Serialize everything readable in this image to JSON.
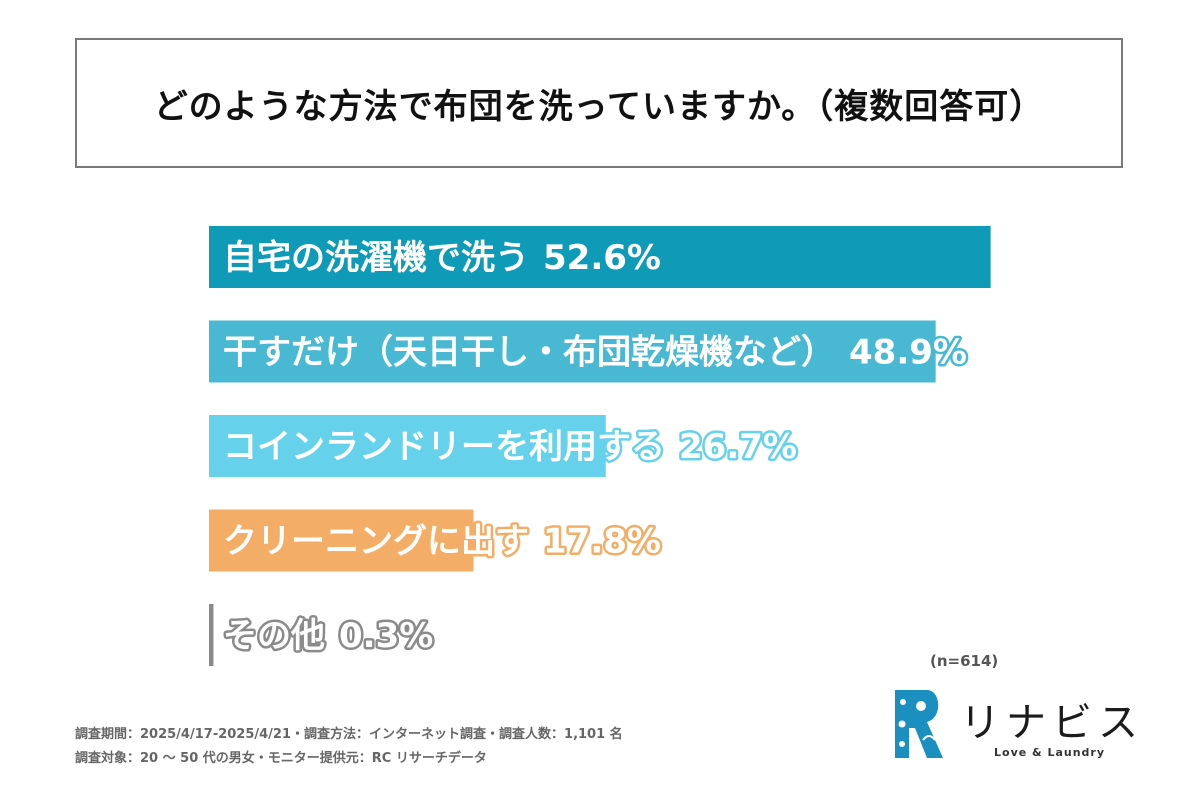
{
  "title": "どのような方法で布団を洗っていますか。（複数回答可）",
  "chart_data": {
    "type": "bar",
    "orientation": "horizontal",
    "categories": [
      "自宅の洗濯機で洗う",
      "干すだけ（天日干し・布団乾燥機など）",
      "コインランドリーを利用する",
      "クリーニングに出す",
      "その他"
    ],
    "values": [
      52.6,
      48.9,
      26.7,
      17.8,
      0.3
    ],
    "value_labels": [
      "52.6%",
      "48.9%",
      "26.7%",
      "17.8%",
      "0.3%"
    ],
    "colors": [
      "#0f9bb8",
      "#48b8d3",
      "#66d1ea",
      "#f3ad66",
      "#8a8a8a"
    ],
    "unit": "%",
    "title": "どのような方法で布団を洗っていますか。（複数回答可）",
    "xlabel": "",
    "ylabel": "",
    "grid": false,
    "legend": "none"
  },
  "sample_size": "(n=614)",
  "footnotes": [
    "調査期間：2025/4/17-2025/4/21・調査方法：インターネット調査・調査人数：1,101 名",
    "調査対象：20 ～ 50 代の男女・モニター提供元：RC リサーチデータ"
  ],
  "logo": {
    "name": "リナビス",
    "tagline": "Love & Laundry",
    "color": "#1b8fc0"
  }
}
